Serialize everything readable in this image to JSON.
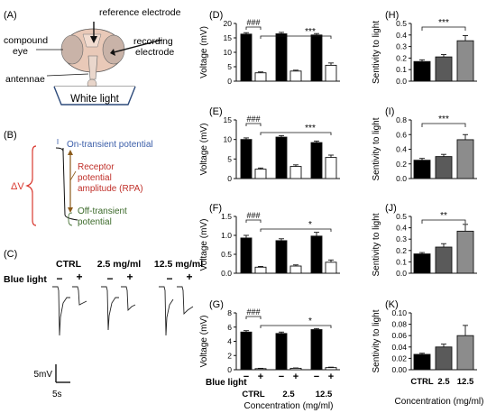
{
  "panel_a": {
    "label": "(A)",
    "labels": {
      "reference": "reference electrode",
      "compound": "compound",
      "eye": "eye",
      "recording": "recording",
      "electrode": "electrode",
      "antennae": "antennae"
    },
    "white_light": "White light"
  },
  "panel_b": {
    "label": "(B)",
    "on_transient": "On-transient potential",
    "rpa_lines": [
      "Receptor",
      "potential",
      "amplitude (RPA)"
    ],
    "off_lines": [
      "Off-transient",
      "potential"
    ],
    "delta_v": "ΔV"
  },
  "panel_c": {
    "label": "(C)",
    "groups": [
      "CTRL",
      "2.5 mg/ml",
      "12.5 mg/ml"
    ],
    "blue_light_label": "Blue light",
    "minus": "−",
    "plus": "+",
    "scale_v": "5mV",
    "scale_t": "5s"
  },
  "colors": {
    "black_bar": "#000000",
    "white_bar": "#ffffff",
    "gray1": "#555555",
    "gray2": "#8a8a8a",
    "gray3": "#8c8c8c",
    "brace_red": "#d9382f",
    "blue_text": "#3a5da8",
    "red_text": "#c0302a",
    "green_text": "#3c6a2a"
  },
  "chart_data": [
    {
      "panel": "(D)",
      "type": "bar",
      "ylabel": "Voltage (mV)",
      "ylim": [
        0,
        20
      ],
      "yticks": [
        0,
        5,
        10,
        15,
        20
      ],
      "categories": [
        "CTRL −",
        "CTRL +",
        "2.5 −",
        "2.5 +",
        "12.5 −",
        "12.5 +"
      ],
      "values": [
        16.3,
        2.9,
        16.4,
        3.5,
        16.0,
        5.5
      ],
      "errors": [
        0.5,
        0.3,
        0.5,
        0.3,
        0.5,
        0.8
      ],
      "sig_short": "###",
      "sig_long": "***"
    },
    {
      "panel": "(E)",
      "type": "bar",
      "ylabel": "Voltage (mV)",
      "ylim": [
        0,
        15
      ],
      "yticks": [
        0,
        5,
        10,
        15
      ],
      "categories": [
        "CTRL −",
        "CTRL +",
        "2.5 −",
        "2.5 +",
        "12.5 −",
        "12.5 +"
      ],
      "values": [
        10.0,
        2.4,
        10.6,
        3.1,
        9.2,
        5.4
      ],
      "errors": [
        0.4,
        0.3,
        0.4,
        0.4,
        0.4,
        0.6
      ],
      "sig_short": "###",
      "sig_long": "***"
    },
    {
      "panel": "(F)",
      "type": "bar",
      "ylabel": "Voltage (mV)",
      "ylim": [
        0,
        1.5
      ],
      "yticks": [
        0.0,
        0.5,
        1.0,
        1.5
      ],
      "categories": [
        "CTRL −",
        "CTRL +",
        "2.5 −",
        "2.5 +",
        "12.5 −",
        "12.5 +"
      ],
      "values": [
        0.93,
        0.16,
        0.86,
        0.19,
        0.98,
        0.29
      ],
      "errors": [
        0.07,
        0.02,
        0.05,
        0.03,
        0.1,
        0.06
      ],
      "sig_short": "###",
      "sig_long": "*"
    },
    {
      "panel": "(G)",
      "type": "bar",
      "ylabel": "Voltage (mV)",
      "ylim": [
        0,
        8
      ],
      "yticks": [
        0,
        2,
        4,
        6,
        8
      ],
      "categories": [
        "CTRL −",
        "CTRL +",
        "2.5 −",
        "2.5 +",
        "12.5 −",
        "12.5 +"
      ],
      "values": [
        5.3,
        0.15,
        5.1,
        0.2,
        5.65,
        0.3
      ],
      "errors": [
        0.2,
        0.05,
        0.2,
        0.05,
        0.15,
        0.06
      ],
      "sig_short": "###",
      "sig_long": "*",
      "xaxis": {
        "blue_light": "Blue light",
        "signs": [
          "−",
          "+",
          "−",
          "+",
          "−",
          "+"
        ],
        "groups": [
          "CTRL",
          "2.5",
          "12.5"
        ],
        "xlabel": "Concentration (mg/ml)"
      }
    },
    {
      "panel": "(H)",
      "type": "bar",
      "ylabel": "Sentivity to light",
      "ylim": [
        0,
        0.5
      ],
      "yticks": [
        0.0,
        0.1,
        0.2,
        0.3,
        0.4,
        0.5
      ],
      "categories": [
        "CTRL",
        "2.5",
        "12.5"
      ],
      "values": [
        0.17,
        0.21,
        0.35
      ],
      "errors": [
        0.015,
        0.02,
        0.045
      ],
      "sig": "***"
    },
    {
      "panel": "(I)",
      "type": "bar",
      "ylabel": "Sentivity to light",
      "ylim": [
        0,
        0.8
      ],
      "yticks": [
        0.0,
        0.2,
        0.4,
        0.6,
        0.8
      ],
      "categories": [
        "CTRL",
        "2.5",
        "12.5"
      ],
      "values": [
        0.25,
        0.3,
        0.53
      ],
      "errors": [
        0.025,
        0.03,
        0.07
      ],
      "sig": "***"
    },
    {
      "panel": "(J)",
      "type": "bar",
      "ylabel": "Sentivity to light",
      "ylim": [
        0,
        0.5
      ],
      "yticks": [
        0.0,
        0.1,
        0.2,
        0.3,
        0.4,
        0.5
      ],
      "categories": [
        "CTRL",
        "2.5",
        "12.5"
      ],
      "values": [
        0.17,
        0.23,
        0.37
      ],
      "errors": [
        0.012,
        0.03,
        0.06
      ],
      "sig": "**"
    },
    {
      "panel": "(K)",
      "type": "bar",
      "ylabel": "Sentivity to light",
      "ylim": [
        0,
        0.1
      ],
      "yticks": [
        0.0,
        0.02,
        0.04,
        0.06,
        0.08,
        0.1
      ],
      "categories": [
        "CTRL",
        "2.5",
        "12.5"
      ],
      "values": [
        0.027,
        0.04,
        0.06
      ],
      "errors": [
        0.002,
        0.005,
        0.018
      ],
      "sig": "",
      "xlabel": "Concentration (mg/ml)"
    }
  ]
}
